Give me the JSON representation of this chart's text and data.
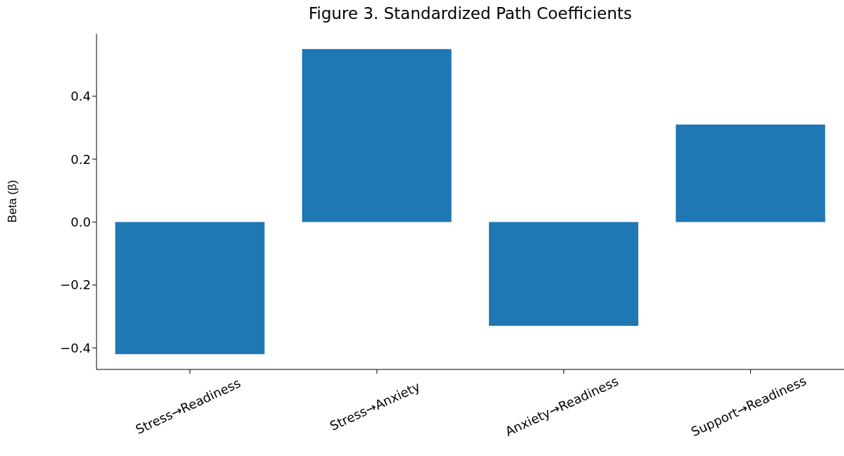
{
  "chart_data": {
    "type": "bar",
    "title": "Figure 3. Standardized Path Coefficients",
    "ylabel": "Beta (β)",
    "categories": [
      "Stress→Readiness",
      "Stress→Anxiety",
      "Anxiety→Readiness",
      "Support→Readiness"
    ],
    "values": [
      -0.42,
      0.55,
      -0.33,
      0.31
    ],
    "color": "#1f77b4",
    "ylim": [
      -0.4685,
      0.5985
    ],
    "yticks": [
      -0.4,
      -0.2,
      {
        "value": 0,
        "label": "0.0"
      },
      0.2,
      0.4
    ],
    "grid": false,
    "legend": false
  }
}
